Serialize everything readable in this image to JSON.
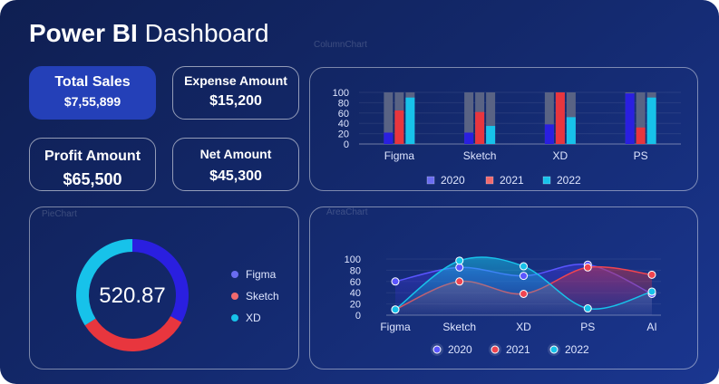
{
  "header": {
    "title_bold": "Power BI",
    "title_rest": "Dashboard"
  },
  "kpis": [
    {
      "label": "Total Sales",
      "value": "$7,55,899",
      "active": true
    },
    {
      "label": "Expense Amount",
      "value": "$15,200",
      "active": false
    },
    {
      "label": "Profit Amount",
      "value": "$65,500",
      "active": false
    },
    {
      "label": "Net Amount",
      "value": "$45,300",
      "active": false
    }
  ],
  "panels": {
    "column_chart_caption": "ColumnChart",
    "pie_caption": "PieChart",
    "area_caption": "AreaChart"
  },
  "donut": {
    "center_value": "520.87"
  },
  "colors": {
    "s2020": "#2a1fe0",
    "s2021": "#e8363e",
    "s2022": "#17c2ea",
    "track": "#596384"
  },
  "chart_data": [
    {
      "type": "bar",
      "categories": [
        "Figma",
        "Sketch",
        "XD",
        "PS"
      ],
      "ylim": [
        0,
        100
      ],
      "yticks": [
        0,
        20,
        40,
        60,
        80,
        100
      ],
      "series": [
        {
          "name": "2020",
          "values": [
            22,
            22,
            38,
            98
          ]
        },
        {
          "name": "2021",
          "values": [
            65,
            62,
            100,
            32
          ]
        },
        {
          "name": "2022",
          "values": [
            90,
            35,
            52,
            90
          ]
        }
      ],
      "legend": "bottom"
    },
    {
      "type": "pie",
      "categories": [
        "Figma",
        "Sketch",
        "XD"
      ],
      "values": [
        33,
        33,
        34
      ],
      "legend": "right"
    },
    {
      "type": "area",
      "categories": [
        "Figma",
        "Sketch",
        "XD",
        "PS",
        "AI"
      ],
      "ylim": [
        0,
        100
      ],
      "yticks": [
        0,
        20,
        40,
        60,
        80,
        100
      ],
      "series": [
        {
          "name": "2020",
          "values": [
            60,
            85,
            70,
            90,
            38
          ]
        },
        {
          "name": "2021",
          "values": [
            10,
            60,
            38,
            85,
            72
          ]
        },
        {
          "name": "2022",
          "values": [
            10,
            97,
            87,
            12,
            42
          ]
        }
      ],
      "legend": "bottom"
    }
  ]
}
